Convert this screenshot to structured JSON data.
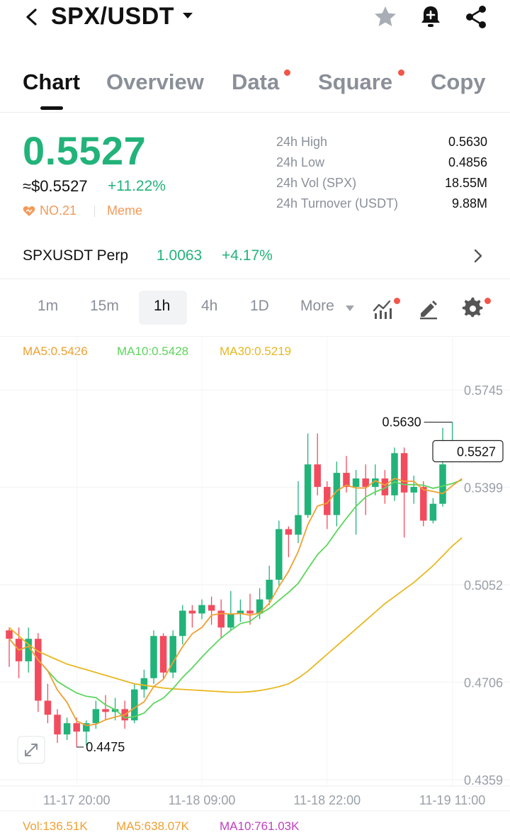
{
  "header": {
    "pair": "SPX/USDT",
    "icons": [
      "back-arrow-icon",
      "caret-down-icon",
      "star-icon",
      "bell-plus-icon",
      "share-icon"
    ]
  },
  "tabs": [
    {
      "label": "Chart",
      "active": true,
      "dot": false
    },
    {
      "label": "Overview",
      "active": false,
      "dot": false
    },
    {
      "label": "Data",
      "active": false,
      "dot": true
    },
    {
      "label": "Square",
      "active": false,
      "dot": true
    },
    {
      "label": "Copy",
      "active": false,
      "dot": false
    }
  ],
  "ticker": {
    "last_price": "0.5527",
    "usd_price": "≈$0.5527",
    "change_pct": "+11.22%",
    "rank": "NO.21",
    "tag": "Meme",
    "stats": [
      {
        "label": "24h High",
        "value": "0.5630"
      },
      {
        "label": "24h Low",
        "value": "0.4856"
      },
      {
        "label": "24h Vol (SPX)",
        "value": "18.55M"
      },
      {
        "label": "24h Turnover (USDT)",
        "value": "9.88M"
      }
    ]
  },
  "perp": {
    "name": "SPXUSDT Perp",
    "price": "1.0063",
    "change": "+4.17%"
  },
  "intervals": {
    "items": [
      "1m",
      "15m",
      "1h",
      "4h",
      "1D",
      "More"
    ],
    "selected": "1h"
  },
  "colors": {
    "up": "#22b37a",
    "down": "#f24b5e",
    "ma5": "#f0a030",
    "ma10": "#5cd65c",
    "ma30": "#e8b820",
    "vol_ma10": "#c040c0"
  },
  "ma_legend": {
    "ma5": "MA5:0.5426",
    "ma10": "MA10:0.5428",
    "ma30": "MA30:0.5219"
  },
  "vol_legend": {
    "vol": "Vol:136.51K",
    "ma5": "MA5:638.07K",
    "ma10": "MA10:761.03K"
  },
  "chart_data": {
    "type": "candlestick",
    "interval": "1h",
    "y_ticks": [
      "0.5745",
      "0.5399",
      "0.5052",
      "0.4706",
      "0.4359"
    ],
    "ylim": [
      0.4359,
      0.5745
    ],
    "x_ticks": [
      "11-17 20:00",
      "11-18 09:00",
      "11-18 22:00",
      "11-19 11:00"
    ],
    "x_tick_index": [
      7,
      20,
      33,
      46
    ],
    "high_label": "0.5630",
    "low_label": "0.4475",
    "current_label": "0.5527",
    "current_price": 0.5527,
    "candles": [
      [
        0.489,
        0.486,
        0.49,
        0.476
      ],
      [
        0.486,
        0.478,
        0.49,
        0.472
      ],
      [
        0.478,
        0.486,
        0.49,
        0.474
      ],
      [
        0.486,
        0.464,
        0.488,
        0.46
      ],
      [
        0.464,
        0.459,
        0.47,
        0.456
      ],
      [
        0.459,
        0.452,
        0.461,
        0.449
      ],
      [
        0.452,
        0.456,
        0.458,
        0.45
      ],
      [
        0.456,
        0.453,
        0.458,
        0.4475
      ],
      [
        0.453,
        0.456,
        0.457,
        0.448
      ],
      [
        0.456,
        0.461,
        0.464,
        0.454
      ],
      [
        0.461,
        0.46,
        0.466,
        0.457
      ],
      [
        0.46,
        0.461,
        0.465,
        0.457
      ],
      [
        0.461,
        0.457,
        0.464,
        0.454
      ],
      [
        0.457,
        0.468,
        0.47,
        0.456
      ],
      [
        0.468,
        0.472,
        0.475,
        0.465
      ],
      [
        0.472,
        0.487,
        0.489,
        0.47
      ],
      [
        0.487,
        0.474,
        0.488,
        0.472
      ],
      [
        0.474,
        0.487,
        0.489,
        0.472
      ],
      [
        0.487,
        0.496,
        0.498,
        0.484
      ],
      [
        0.496,
        0.495,
        0.498,
        0.49
      ],
      [
        0.495,
        0.498,
        0.5,
        0.493
      ],
      [
        0.498,
        0.496,
        0.501,
        0.491
      ],
      [
        0.496,
        0.49,
        0.5,
        0.486
      ],
      [
        0.49,
        0.495,
        0.503,
        0.489
      ],
      [
        0.495,
        0.496,
        0.5,
        0.492
      ],
      [
        0.496,
        0.495,
        0.502,
        0.491
      ],
      [
        0.495,
        0.5,
        0.504,
        0.493
      ],
      [
        0.5,
        0.507,
        0.512,
        0.498
      ],
      [
        0.507,
        0.525,
        0.528,
        0.505
      ],
      [
        0.525,
        0.523,
        0.526,
        0.515
      ],
      [
        0.523,
        0.53,
        0.542,
        0.52
      ],
      [
        0.53,
        0.548,
        0.559,
        0.529
      ],
      [
        0.548,
        0.54,
        0.559,
        0.537
      ],
      [
        0.54,
        0.53,
        0.542,
        0.525
      ],
      [
        0.53,
        0.545,
        0.549,
        0.526
      ],
      [
        0.545,
        0.54,
        0.551,
        0.538
      ],
      [
        0.54,
        0.543,
        0.546,
        0.523
      ],
      [
        0.543,
        0.54,
        0.548,
        0.53
      ],
      [
        0.54,
        0.543,
        0.548,
        0.537
      ],
      [
        0.543,
        0.537,
        0.546,
        0.534
      ],
      [
        0.537,
        0.552,
        0.554,
        0.535
      ],
      [
        0.552,
        0.538,
        0.554,
        0.522
      ],
      [
        0.538,
        0.54,
        0.544,
        0.534
      ],
      [
        0.54,
        0.528,
        0.542,
        0.526
      ],
      [
        0.528,
        0.534,
        0.536,
        0.527
      ],
      [
        0.534,
        0.548,
        0.561,
        0.533
      ],
      [
        0.551,
        0.552,
        0.563,
        0.55
      ],
      [
        0.552,
        0.5527,
        0.554,
        0.549
      ]
    ],
    "ma30_series": [
      0.49,
      0.487,
      0.484,
      0.4815,
      0.48,
      0.4785,
      0.477,
      0.476,
      0.475,
      0.474,
      0.473,
      0.472,
      0.471,
      0.47,
      0.4695,
      0.469,
      0.4685,
      0.4682,
      0.468,
      0.4678,
      0.4676,
      0.4674,
      0.4672,
      0.467,
      0.467,
      0.4672,
      0.4676,
      0.4682,
      0.469,
      0.47,
      0.472,
      0.4745,
      0.4775,
      0.4805,
      0.4835,
      0.4865,
      0.4895,
      0.4925,
      0.4955,
      0.4985,
      0.501,
      0.5035,
      0.506,
      0.509,
      0.512,
      0.5155,
      0.519,
      0.5219
    ]
  }
}
